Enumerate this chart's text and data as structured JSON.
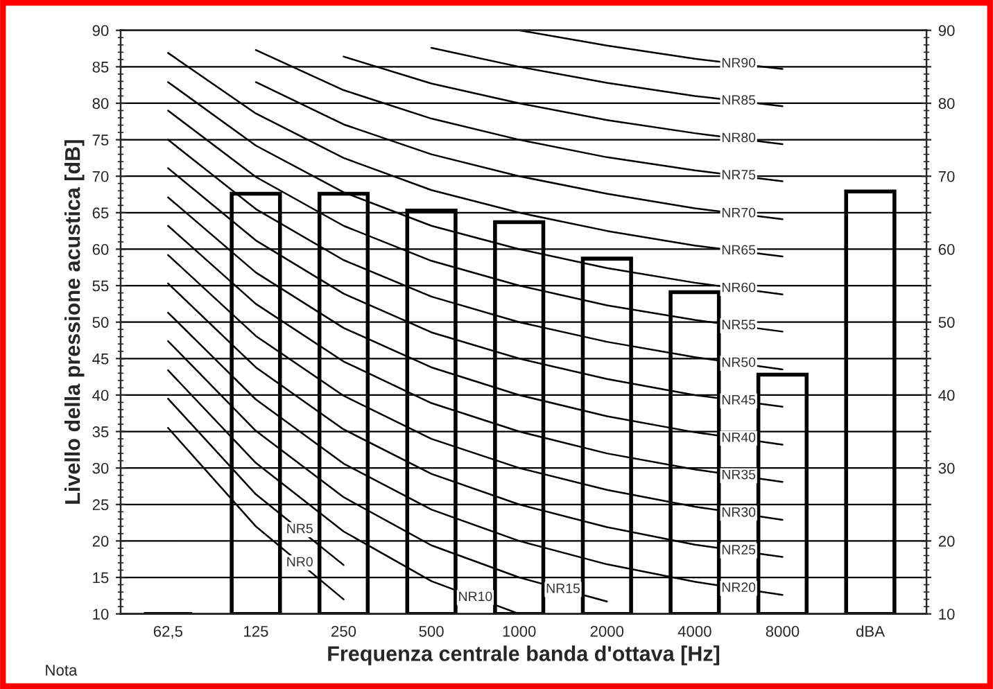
{
  "chart_data": {
    "type": "bar",
    "xlabel": "Frequenza centrale banda d'ottava [Hz]",
    "ylabel": "Livello della pressione acustica [dB]",
    "categories": [
      "62,5",
      "125",
      "250",
      "500",
      "1000",
      "2000",
      "4000",
      "8000",
      "dBA"
    ],
    "ylim": [
      10,
      90
    ],
    "yticks": [
      10,
      15,
      20,
      25,
      30,
      35,
      40,
      45,
      50,
      55,
      60,
      65,
      70,
      75,
      80,
      85,
      90
    ],
    "y2lim": [
      10,
      90
    ],
    "y2ticks": [
      {
        "value": 10,
        "label": "10"
      },
      {
        "value": 15,
        "label": null
      },
      {
        "value": 20,
        "label": "20"
      },
      {
        "value": 25,
        "label": null
      },
      {
        "value": 30,
        "label": "30"
      },
      {
        "value": 35,
        "label": null
      },
      {
        "value": 40,
        "label": "40"
      },
      {
        "value": 45,
        "label": null
      },
      {
        "value": 50,
        "label": "50"
      },
      {
        "value": 55,
        "label": null
      },
      {
        "value": 60,
        "label": "60"
      },
      {
        "value": 65,
        "label": null
      },
      {
        "value": 70,
        "label": "70"
      },
      {
        "value": 75,
        "label": null
      },
      {
        "value": 80,
        "label": "80"
      },
      {
        "value": 85,
        "label": null
      },
      {
        "value": 90,
        "label": "90"
      }
    ],
    "grid": "y",
    "legend": false,
    "annotations": [
      "Nota"
    ],
    "series": [
      {
        "color": "#000000",
        "values": [
          10,
          67.6,
          67.6,
          65.3,
          63.7,
          58.7,
          54.1,
          42.8,
          67.9
        ]
      },
      {
        "type": "line",
        "name": "NR0",
        "color": "#000000",
        "values": [
          35.5,
          22.0,
          12.0,
          null,
          null,
          null,
          null,
          null,
          null
        ]
      },
      {
        "type": "line",
        "name": "NR5",
        "color": "#000000",
        "values": [
          39.5,
          26.4,
          16.7,
          null,
          null,
          null,
          null,
          null,
          null
        ]
      },
      {
        "type": "line",
        "name": "NR10",
        "color": "#000000",
        "values": [
          43.4,
          30.7,
          21.3,
          14.5,
          10.0,
          null,
          null,
          null,
          null
        ]
      },
      {
        "type": "line",
        "name": "NR15",
        "color": "#000000",
        "values": [
          47.4,
          35.1,
          26.0,
          19.4,
          15.0,
          11.7,
          null,
          null,
          null
        ]
      },
      {
        "type": "line",
        "name": "NR20",
        "color": "#000000",
        "values": [
          51.3,
          39.4,
          30.6,
          24.3,
          20.0,
          16.8,
          14.4,
          12.6,
          null
        ]
      },
      {
        "type": "line",
        "name": "NR25",
        "color": "#000000",
        "values": [
          55.3,
          43.8,
          35.3,
          29.2,
          25.0,
          21.9,
          19.5,
          17.8,
          null
        ]
      },
      {
        "type": "line",
        "name": "NR30",
        "color": "#000000",
        "values": [
          59.2,
          48.1,
          39.9,
          34.0,
          30.0,
          27.0,
          24.7,
          22.9,
          null
        ]
      },
      {
        "type": "line",
        "name": "NR35",
        "color": "#000000",
        "values": [
          63.2,
          52.5,
          44.6,
          38.9,
          35.0,
          32.0,
          29.8,
          28.1,
          null
        ]
      },
      {
        "type": "line",
        "name": "NR40",
        "color": "#000000",
        "values": [
          67.1,
          56.8,
          49.2,
          43.8,
          40.0,
          37.1,
          34.9,
          33.2,
          null
        ]
      },
      {
        "type": "line",
        "name": "NR45",
        "color": "#000000",
        "values": [
          71.1,
          61.2,
          53.9,
          48.6,
          45.0,
          42.2,
          40.0,
          38.4,
          null
        ]
      },
      {
        "type": "line",
        "name": "NR50",
        "color": "#000000",
        "values": [
          75.0,
          65.5,
          58.5,
          53.5,
          50.0,
          47.3,
          45.2,
          43.5,
          null
        ]
      },
      {
        "type": "line",
        "name": "NR55",
        "color": "#000000",
        "values": [
          79.0,
          69.9,
          63.2,
          58.4,
          55.0,
          52.3,
          50.3,
          48.7,
          null
        ]
      },
      {
        "type": "line",
        "name": "NR60",
        "color": "#000000",
        "values": [
          82.9,
          74.2,
          67.8,
          63.2,
          60.0,
          57.4,
          55.4,
          53.8,
          null
        ]
      },
      {
        "type": "line",
        "name": "NR65",
        "color": "#000000",
        "values": [
          86.9,
          78.6,
          72.5,
          68.1,
          65.0,
          62.5,
          60.5,
          59.0,
          null
        ]
      },
      {
        "type": "line",
        "name": "NR70",
        "color": "#000000",
        "values": [
          null,
          82.9,
          77.1,
          73.0,
          70.0,
          67.6,
          65.6,
          64.1,
          null
        ]
      },
      {
        "type": "line",
        "name": "NR75",
        "color": "#000000",
        "values": [
          null,
          87.3,
          81.8,
          77.9,
          75.0,
          72.6,
          70.8,
          69.3,
          null
        ]
      },
      {
        "type": "line",
        "name": "NR80",
        "color": "#000000",
        "values": [
          null,
          null,
          86.4,
          82.7,
          80.0,
          77.7,
          75.9,
          74.4,
          null
        ]
      },
      {
        "type": "line",
        "name": "NR85",
        "color": "#000000",
        "values": [
          null,
          null,
          null,
          87.6,
          85.0,
          82.8,
          81.0,
          79.6,
          null
        ]
      },
      {
        "type": "line",
        "name": "NR90",
        "color": "#000000",
        "values": [
          null,
          null,
          null,
          null,
          90.0,
          87.9,
          86.1,
          84.7,
          null
        ]
      }
    ]
  }
}
